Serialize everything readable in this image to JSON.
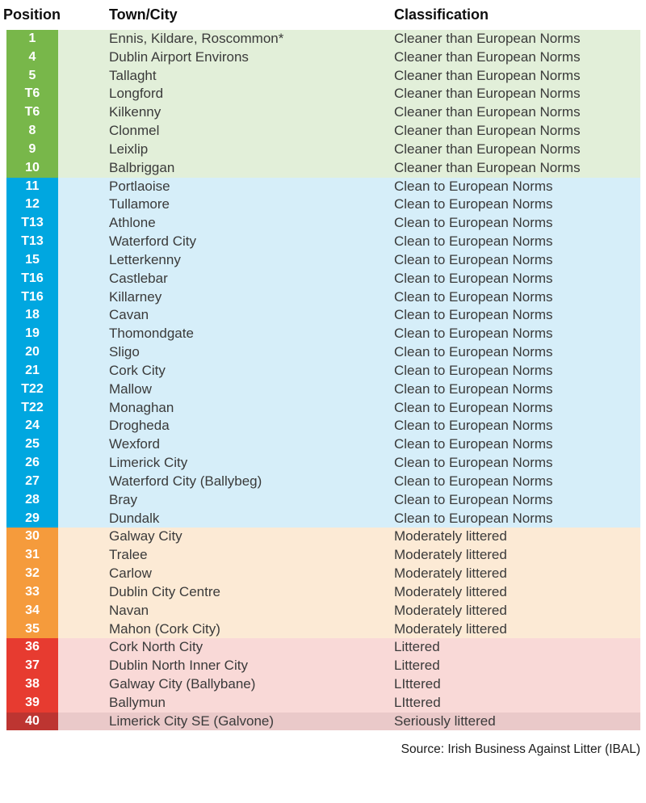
{
  "header": {
    "position_label": "Position",
    "town_label": "Town/City",
    "classification_label": "Classification"
  },
  "footer": {
    "source_label": "Source: Irish Business Against Litter (IBAL)"
  },
  "chart_data": {
    "type": "table",
    "columns": [
      "Position",
      "Town/City",
      "Classification"
    ],
    "source": "Source: Irish Business Against Litter (IBAL)",
    "sections": [
      {
        "classification_group": "Cleaner than European Norms",
        "position_bg": "#78b74a",
        "row_bg": "#e2efd9",
        "rows": [
          {
            "position": "1",
            "town": "Ennis, Kildare, Roscommon*",
            "classification": "Cleaner than European Norms"
          },
          {
            "position": "4",
            "town": "Dublin Airport Environs",
            "classification": "Cleaner than European Norms"
          },
          {
            "position": "5",
            "town": "Tallaght",
            "classification": "Cleaner than European Norms"
          },
          {
            "position": "T6",
            "town": "Longford",
            "classification": "Cleaner than European Norms"
          },
          {
            "position": "T6",
            "town": "Kilkenny",
            "classification": "Cleaner than European Norms"
          },
          {
            "position": "8",
            "town": "Clonmel",
            "classification": "Cleaner than European Norms"
          },
          {
            "position": "9",
            "town": "Leixlip",
            "classification": "Cleaner than European Norms"
          },
          {
            "position": "10",
            "town": "Balbriggan",
            "classification": "Cleaner than European Norms"
          }
        ]
      },
      {
        "classification_group": "Clean to European Norms",
        "position_bg": "#00a7e0",
        "row_bg": "#d6eef9",
        "rows": [
          {
            "position": "11",
            "town": "Portlaoise",
            "classification": "Clean to European Norms"
          },
          {
            "position": "12",
            "town": "Tullamore",
            "classification": "Clean to European Norms"
          },
          {
            "position": "T13",
            "town": "Athlone",
            "classification": "Clean to European Norms"
          },
          {
            "position": "T13",
            "town": "Waterford City",
            "classification": "Clean to European Norms"
          },
          {
            "position": "15",
            "town": "Letterkenny",
            "classification": "Clean to European Norms"
          },
          {
            "position": "T16",
            "town": "Castlebar",
            "classification": "Clean to European Norms"
          },
          {
            "position": "T16",
            "town": "Killarney",
            "classification": "Clean to European Norms"
          },
          {
            "position": "18",
            "town": "Cavan",
            "classification": "Clean to European Norms"
          },
          {
            "position": "19",
            "town": "Thomondgate",
            "classification": "Clean to European Norms"
          },
          {
            "position": "20",
            "town": "Sligo",
            "classification": "Clean to European Norms"
          },
          {
            "position": "21",
            "town": "Cork City",
            "classification": "Clean to European Norms"
          },
          {
            "position": "T22",
            "town": "Mallow",
            "classification": "Clean to European Norms"
          },
          {
            "position": "T22",
            "town": "Monaghan",
            "classification": "Clean to European Norms"
          },
          {
            "position": "24",
            "town": "Drogheda",
            "classification": "Clean to European Norms"
          },
          {
            "position": "25",
            "town": "Wexford",
            "classification": "Clean to European Norms"
          },
          {
            "position": "26",
            "town": "Limerick City",
            "classification": "Clean to European Norms"
          },
          {
            "position": "27",
            "town": "Waterford City (Ballybeg)",
            "classification": "Clean to European Norms"
          },
          {
            "position": "28",
            "town": "Bray",
            "classification": "Clean to European Norms"
          },
          {
            "position": "29",
            "town": "Dundalk",
            "classification": "Clean to European Norms"
          }
        ]
      },
      {
        "classification_group": "Moderately littered",
        "position_bg": "#f59b3c",
        "row_bg": "#fcead5",
        "rows": [
          {
            "position": "30",
            "town": "Galway City",
            "classification": "Moderately littered"
          },
          {
            "position": "31",
            "town": "Tralee",
            "classification": "Moderately littered"
          },
          {
            "position": "32",
            "town": "Carlow",
            "classification": "Moderately littered"
          },
          {
            "position": "33",
            "town": "Dublin City Centre",
            "classification": "Moderately littered"
          },
          {
            "position": "34",
            "town": "Navan",
            "classification": "Moderately littered"
          },
          {
            "position": "35",
            "town": "Mahon (Cork City)",
            "classification": "Moderately littered"
          }
        ]
      },
      {
        "classification_group": "Littered",
        "position_bg": "#e73b30",
        "row_bg": "#f9d9d7",
        "rows": [
          {
            "position": "36",
            "town": "Cork North City",
            "classification": "Littered"
          },
          {
            "position": "37",
            "town": "Dublin North Inner City",
            "classification": "Littered"
          },
          {
            "position": "38",
            "town": "Galway City (Ballybane)",
            "classification": "LIttered"
          },
          {
            "position": "39",
            "town": "Ballymun",
            "classification": "LIttered"
          }
        ]
      },
      {
        "classification_group": "Seriously littered",
        "position_bg": "#bd3531",
        "row_bg": "#eac9c9",
        "rows": [
          {
            "position": "40",
            "town": "Limerick City SE (Galvone)",
            "classification": "Seriously littered"
          }
        ]
      }
    ]
  }
}
